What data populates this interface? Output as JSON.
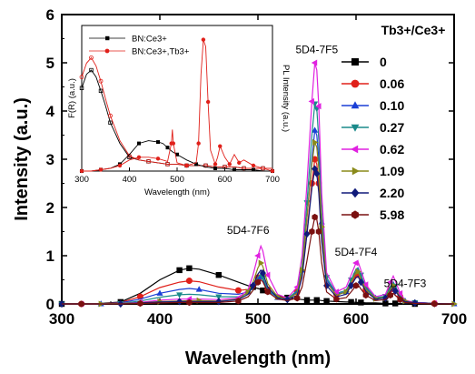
{
  "chart_data": [
    {
      "type": "line",
      "xlabel": "Wavelength (nm)",
      "ylabel": "Intensity (a.u.)",
      "xlim": [
        300,
        700
      ],
      "ylim": [
        0,
        6
      ],
      "x_ticks": [
        "300",
        "400",
        "500",
        "600",
        "700"
      ],
      "y_ticks": [
        "0",
        "1",
        "2",
        "3",
        "4",
        "5",
        "6"
      ],
      "legend_title": "Tb3+/Ce3+",
      "legend_position": "right",
      "annotations": [
        {
          "text": "5D4-7F5",
          "x": 560,
          "y": 5.2
        },
        {
          "text": "5D4-7F6",
          "x": 490,
          "y": 1.45
        },
        {
          "text": "5D4-7F4",
          "x": 600,
          "y": 1.0
        },
        {
          "text": "5D4-7F3",
          "x": 650,
          "y": 0.35
        }
      ],
      "x": [
        300,
        320,
        340,
        360,
        380,
        400,
        420,
        430,
        440,
        460,
        480,
        490,
        495,
        500,
        503,
        505,
        510,
        520,
        530,
        540,
        545,
        550,
        555,
        558,
        560,
        562,
        565,
        570,
        580,
        590,
        595,
        600,
        602,
        605,
        610,
        620,
        630,
        635,
        638,
        640,
        645,
        650,
        660,
        680,
        700
      ],
      "series": [
        {
          "name": "0",
          "color": "#000000",
          "marker": "square",
          "values": [
            0,
            0,
            0.01,
            0.04,
            0.22,
            0.5,
            0.7,
            0.74,
            0.72,
            0.6,
            0.45,
            0.38,
            0.35,
            0.32,
            0.3,
            0.28,
            0.25,
            0.18,
            0.13,
            0.1,
            0.09,
            0.08,
            0.08,
            0.08,
            0.08,
            0.08,
            0.07,
            0.06,
            0.05,
            0.04,
            0.04,
            0.03,
            0.03,
            0.03,
            0.02,
            0.02,
            0.01,
            0.01,
            0.01,
            0.01,
            0.01,
            0.01,
            0,
            0,
            0
          ]
        },
        {
          "name": "0.06",
          "color": "#e0201a",
          "marker": "circle",
          "values": [
            0,
            0,
            0,
            0.03,
            0.15,
            0.34,
            0.45,
            0.48,
            0.46,
            0.35,
            0.28,
            0.3,
            0.4,
            0.55,
            0.6,
            0.55,
            0.3,
            0.15,
            0.12,
            0.25,
            0.6,
            1.5,
            2.5,
            3,
            2.9,
            2.5,
            1.4,
            0.45,
            0.2,
            0.25,
            0.4,
            0.6,
            0.62,
            0.5,
            0.3,
            0.12,
            0.15,
            0.3,
            0.36,
            0.3,
            0.15,
            0.06,
            0.03,
            0.01,
            0
          ]
        },
        {
          "name": "0.10",
          "color": "#1a3fd6",
          "marker": "triangle-up",
          "values": [
            0,
            0,
            0,
            0.02,
            0.1,
            0.22,
            0.3,
            0.32,
            0.3,
            0.22,
            0.2,
            0.25,
            0.35,
            0.5,
            0.56,
            0.5,
            0.28,
            0.13,
            0.1,
            0.25,
            0.7,
            1.8,
            3,
            3.6,
            3.5,
            3,
            1.7,
            0.5,
            0.2,
            0.25,
            0.45,
            0.65,
            0.68,
            0.55,
            0.32,
            0.12,
            0.15,
            0.32,
            0.4,
            0.33,
            0.16,
            0.06,
            0.03,
            0.01,
            0
          ]
        },
        {
          "name": "0.27",
          "color": "#1a8a8a",
          "marker": "triangle-down",
          "values": [
            0,
            0,
            0,
            0.01,
            0.06,
            0.14,
            0.19,
            0.2,
            0.19,
            0.15,
            0.15,
            0.22,
            0.35,
            0.55,
            0.62,
            0.55,
            0.3,
            0.13,
            0.1,
            0.28,
            0.8,
            2.1,
            3.5,
            4.15,
            4.05,
            3.4,
            1.9,
            0.55,
            0.22,
            0.28,
            0.5,
            0.72,
            0.75,
            0.6,
            0.35,
            0.13,
            0.16,
            0.36,
            0.45,
            0.37,
            0.18,
            0.07,
            0.03,
            0.01,
            0
          ]
        },
        {
          "name": "0.62",
          "color": "#e020e0",
          "marker": "triangle-left",
          "values": [
            0,
            0,
            0,
            0.01,
            0.03,
            0.08,
            0.1,
            0.1,
            0.1,
            0.09,
            0.12,
            0.3,
            0.6,
            1,
            1.2,
            1.1,
            0.6,
            0.2,
            0.12,
            0.35,
            1,
            2.5,
            4.2,
            5,
            4.85,
            4.1,
            2.3,
            0.65,
            0.25,
            0.35,
            0.6,
            0.85,
            0.88,
            0.7,
            0.4,
            0.15,
            0.2,
            0.45,
            0.58,
            0.48,
            0.22,
            0.08,
            0.03,
            0.01,
            0
          ]
        },
        {
          "name": "1.09",
          "color": "#8a8a1a",
          "marker": "triangle-right",
          "values": [
            0,
            0,
            0,
            0.01,
            0.02,
            0.05,
            0.06,
            0.07,
            0.07,
            0.06,
            0.1,
            0.25,
            0.45,
            0.75,
            0.85,
            0.78,
            0.42,
            0.15,
            0.1,
            0.22,
            0.7,
            1.8,
            2.9,
            3.35,
            3.25,
            2.8,
            1.6,
            0.45,
            0.18,
            0.25,
            0.45,
            0.65,
            0.67,
            0.52,
            0.3,
            0.11,
            0.14,
            0.3,
            0.38,
            0.31,
            0.15,
            0.06,
            0.02,
            0.01,
            0
          ]
        },
        {
          "name": "2.20",
          "color": "#101a7a",
          "marker": "diamond",
          "values": [
            0,
            0,
            0,
            0,
            0.02,
            0.04,
            0.05,
            0.05,
            0.05,
            0.05,
            0.09,
            0.2,
            0.38,
            0.62,
            0.7,
            0.64,
            0.35,
            0.13,
            0.09,
            0.18,
            0.55,
            1.45,
            2.4,
            2.8,
            2.7,
            2.3,
            1.3,
            0.38,
            0.15,
            0.2,
            0.38,
            0.55,
            0.57,
            0.45,
            0.26,
            0.1,
            0.12,
            0.26,
            0.33,
            0.27,
            0.13,
            0.05,
            0.02,
            0.01,
            0
          ]
        },
        {
          "name": "5.98",
          "color": "#7a1010",
          "marker": "hexagon",
          "values": [
            0,
            0,
            0,
            0,
            0.01,
            0.02,
            0.03,
            0.03,
            0.03,
            0.03,
            0.06,
            0.15,
            0.28,
            0.45,
            0.5,
            0.46,
            0.25,
            0.1,
            0.07,
            0.12,
            0.35,
            0.9,
            1.5,
            1.8,
            1.75,
            1.5,
            0.85,
            0.25,
            0.1,
            0.13,
            0.25,
            0.38,
            0.4,
            0.31,
            0.18,
            0.07,
            0.09,
            0.18,
            0.22,
            0.18,
            0.09,
            0.03,
            0.01,
            0,
            0
          ]
        }
      ]
    },
    {
      "type": "line",
      "xlabel": "Wavelength (nm)",
      "ylabel_left": "F(R) (a.u.)",
      "ylabel_right": "PL Intensity (a.u.)",
      "xlim": [
        300,
        700
      ],
      "x_ticks": [
        "300",
        "400",
        "500",
        "600",
        "700"
      ],
      "legend_position": "top-left",
      "series": [
        {
          "name": "BN:Ce3+",
          "color": "#000000",
          "marker": "square",
          "x": [
            280,
            290,
            300,
            310,
            320,
            330,
            340,
            350,
            360,
            380,
            400,
            420,
            440,
            460,
            480,
            500,
            520,
            540,
            560,
            580,
            600,
            620,
            640,
            660,
            680,
            700
          ],
          "values": [
            0.3,
            0.5,
            0.6,
            0.7,
            0.73,
            0.68,
            0.58,
            0.47,
            0.35,
            0.2,
            0.1,
            0.08,
            0.07,
            0.06,
            0.05,
            0.05,
            0.04,
            0.04,
            0.04,
            0.03,
            0.03,
            0.03,
            0.02,
            0.02,
            0.02,
            0.02
          ]
        },
        {
          "name": "BN:Ce3+,Tb3+",
          "color": "#e0201a",
          "marker": "circle",
          "x": [
            280,
            290,
            300,
            310,
            320,
            330,
            340,
            350,
            360,
            380,
            400,
            420,
            440,
            460,
            480,
            500,
            520,
            540,
            560,
            580,
            600,
            620,
            640,
            660,
            680,
            700
          ],
          "values": [
            0.35,
            0.55,
            0.68,
            0.78,
            0.82,
            0.76,
            0.65,
            0.52,
            0.4,
            0.22,
            0.11,
            0.08,
            0.07,
            0.06,
            0.05,
            0.05,
            0.04,
            0.04,
            0.04,
            0.03,
            0.03,
            0.03,
            0.02,
            0.02,
            0.02,
            0.02
          ]
        },
        {
          "name": "",
          "color": "#000000",
          "marker": "square",
          "role": "PL",
          "x": [
            300,
            320,
            340,
            360,
            380,
            400,
            420,
            440,
            460,
            470,
            480,
            490,
            500,
            520,
            540,
            560,
            580,
            600,
            620,
            640,
            660,
            680,
            700
          ],
          "values": [
            0,
            0,
            0.01,
            0.02,
            0.05,
            0.12,
            0.2,
            0.22,
            0.21,
            0.2,
            0.17,
            0.14,
            0.12,
            0.08,
            0.05,
            0.03,
            0.02,
            0.02,
            0.01,
            0.01,
            0.01,
            0,
            0
          ]
        },
        {
          "name": "",
          "color": "#e0201a",
          "marker": "circle",
          "role": "PL",
          "x": [
            300,
            320,
            340,
            360,
            380,
            400,
            420,
            440,
            460,
            480,
            488,
            490,
            492,
            500,
            520,
            540,
            545,
            550,
            555,
            560,
            565,
            570,
            580,
            585,
            590,
            600,
            610,
            620,
            630,
            640,
            660,
            680,
            700
          ],
          "values": [
            0,
            0,
            0.01,
            0.02,
            0.04,
            0.08,
            0.1,
            0.1,
            0.09,
            0.07,
            0.2,
            0.3,
            0.2,
            0.06,
            0.04,
            0.06,
            0.2,
            0.7,
            0.95,
            0.9,
            0.5,
            0.15,
            0.05,
            0.1,
            0.18,
            0.1,
            0.05,
            0.12,
            0.06,
            0.08,
            0.04,
            0.02,
            0
          ]
        }
      ],
      "xlabel_text": "Wavelength (nm)"
    }
  ]
}
